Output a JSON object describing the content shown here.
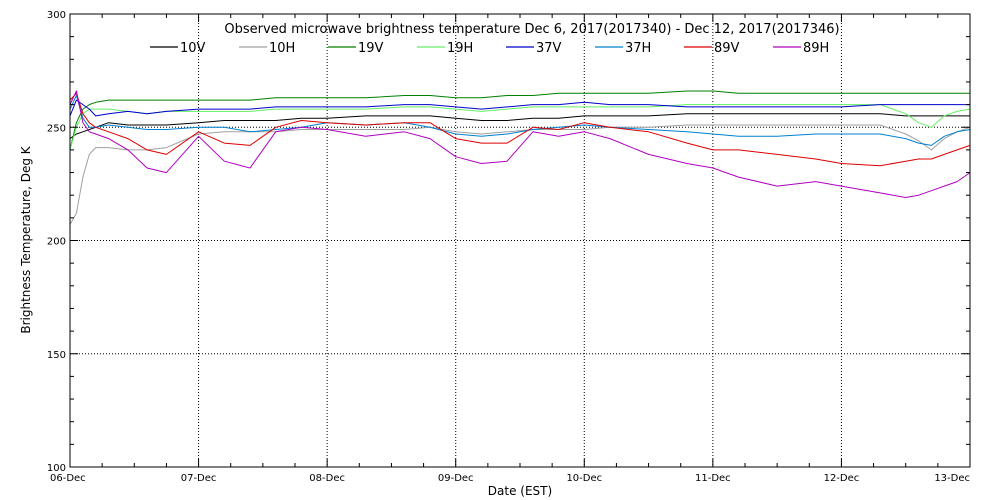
{
  "chart_data": {
    "type": "line",
    "title": "Observed microwave brightness temperature Dec  6, 2017(2017340) - Dec 12, 2017(2017346)",
    "xlabel": "Date (EST)",
    "ylabel": "Brightness Temperature, Deg K",
    "ylim": [
      100,
      300
    ],
    "y_ticks": [
      100,
      150,
      200,
      250,
      300
    ],
    "x_ticks": [
      "06-Dec",
      "07-Dec",
      "08-Dec",
      "09-Dec",
      "10-Dec",
      "11-Dec",
      "12-Dec",
      "13-Dec"
    ],
    "grid": true,
    "legend_position": "top",
    "x": [
      0,
      0.05,
      0.1,
      0.15,
      0.2,
      0.3,
      0.45,
      0.6,
      0.75,
      1.0,
      1.2,
      1.4,
      1.6,
      1.8,
      2.0,
      2.3,
      2.6,
      2.8,
      3.0,
      3.2,
      3.4,
      3.6,
      3.8,
      4.0,
      4.2,
      4.5,
      4.8,
      5.0,
      5.2,
      5.5,
      5.8,
      6.0,
      6.3,
      6.5,
      6.6,
      6.7,
      6.8,
      6.9,
      7.0
    ],
    "series": [
      {
        "name": "10V",
        "color": "#000000",
        "values": [
          245,
          247,
          248,
          249,
          250,
          252,
          251,
          251,
          251,
          252,
          253,
          253,
          253,
          254,
          254,
          255,
          255,
          255,
          254,
          253,
          253,
          254,
          254,
          255,
          255,
          255,
          256,
          256,
          256,
          256,
          256,
          256,
          256,
          255,
          255,
          255,
          255,
          255,
          255
        ]
      },
      {
        "name": "10H",
        "color": "#a0a0a0",
        "values": [
          207,
          212,
          228,
          238,
          241,
          241,
          240,
          240,
          241,
          247,
          248,
          248,
          248,
          249,
          249,
          249,
          249,
          250,
          248,
          247,
          248,
          249,
          249,
          249,
          250,
          250,
          251,
          251,
          251,
          251,
          251,
          251,
          251,
          247,
          244,
          240,
          245,
          248,
          250
        ]
      },
      {
        "name": "19V",
        "color": "#008000",
        "values": [
          240,
          252,
          258,
          260,
          261,
          262,
          262,
          262,
          262,
          262,
          262,
          262,
          263,
          263,
          263,
          263,
          264,
          264,
          263,
          263,
          264,
          264,
          265,
          265,
          265,
          265,
          266,
          266,
          265,
          265,
          265,
          265,
          265,
          265,
          265,
          265,
          265,
          265,
          265
        ]
      },
      {
        "name": "19H",
        "color": "#66ee66",
        "values": [
          240,
          250,
          256,
          258,
          258,
          258,
          257,
          256,
          257,
          257,
          257,
          257,
          258,
          258,
          258,
          258,
          259,
          259,
          258,
          257,
          258,
          259,
          259,
          259,
          259,
          259,
          260,
          260,
          260,
          260,
          260,
          260,
          260,
          256,
          252,
          250,
          255,
          257,
          258
        ]
      },
      {
        "name": "37V",
        "color": "#0000cc",
        "values": [
          255,
          262,
          260,
          258,
          255,
          256,
          257,
          256,
          257,
          258,
          258,
          258,
          259,
          259,
          259,
          259,
          260,
          260,
          259,
          258,
          259,
          260,
          260,
          261,
          260,
          260,
          259,
          259,
          259,
          259,
          259,
          259,
          260,
          260,
          260,
          260,
          260,
          260,
          260
        ]
      },
      {
        "name": "37H",
        "color": "#0080d0",
        "values": [
          258,
          264,
          254,
          250,
          250,
          251,
          250,
          249,
          249,
          250,
          250,
          248,
          249,
          250,
          252,
          251,
          252,
          250,
          247,
          246,
          247,
          249,
          250,
          251,
          250,
          249,
          248,
          247,
          246,
          246,
          247,
          247,
          247,
          245,
          243,
          242,
          246,
          248,
          249
        ]
      },
      {
        "name": "89V",
        "color": "#dd0000",
        "values": [
          262,
          265,
          256,
          252,
          250,
          248,
          245,
          240,
          238,
          248,
          243,
          242,
          250,
          253,
          252,
          251,
          252,
          252,
          245,
          243,
          243,
          250,
          249,
          252,
          250,
          248,
          243,
          240,
          240,
          238,
          236,
          234,
          233,
          235,
          236,
          236,
          238,
          240,
          242
        ]
      },
      {
        "name": "89H",
        "color": "#b000c0",
        "values": [
          260,
          266,
          252,
          248,
          247,
          245,
          240,
          232,
          230,
          246,
          235,
          232,
          248,
          250,
          249,
          246,
          248,
          245,
          237,
          234,
          235,
          248,
          246,
          248,
          245,
          238,
          234,
          232,
          228,
          224,
          226,
          224,
          221,
          219,
          220,
          222,
          224,
          226,
          230
        ]
      }
    ]
  }
}
